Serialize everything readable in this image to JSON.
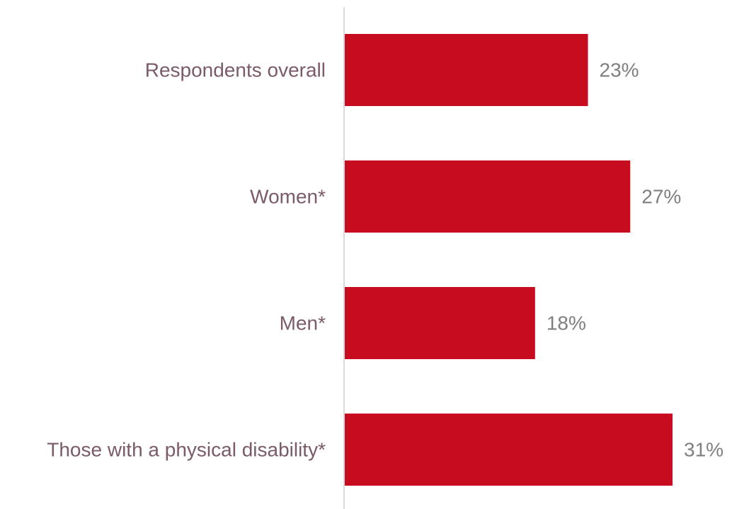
{
  "chart_data": {
    "type": "bar",
    "orientation": "horizontal",
    "categories": [
      "Respondents overall",
      "Women*",
      "Men*",
      "Those with a physical disability*"
    ],
    "values": [
      23,
      27,
      18,
      31
    ],
    "value_labels": [
      "23%",
      "27%",
      "18%",
      "31%"
    ],
    "unit": "%",
    "xlim": [
      0,
      35
    ],
    "grid": false,
    "legend": "none",
    "colors": {
      "bar": "#c80c20",
      "axis": "#d9d9d9",
      "category_text": "#7b5a6a",
      "value_text": "#7f7f7f"
    }
  }
}
